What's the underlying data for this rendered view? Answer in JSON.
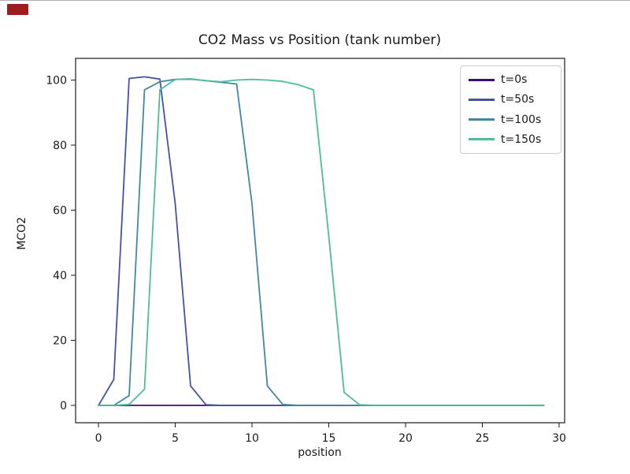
{
  "window": {
    "recording_indicator_color": "#9b1d1d",
    "background": "#ffffff",
    "top_edge_color": "#adadad"
  },
  "chart_data": {
    "type": "line",
    "title": "CO2 Mass vs Position (tank number)",
    "xlabel": "position",
    "ylabel": "MCO2",
    "xlim": [
      -1.49,
      30.36
    ],
    "ylim": [
      -5.33,
      106.67
    ],
    "x_ticks": [
      0,
      5,
      10,
      15,
      20,
      25,
      30
    ],
    "y_ticks": [
      0,
      20,
      40,
      60,
      80,
      100
    ],
    "grid": false,
    "legend_position": "upper right",
    "axis_color": "#1a1a1a",
    "x": [
      0,
      1,
      2,
      3,
      4,
      5,
      6,
      7,
      8,
      9,
      10,
      11,
      12,
      13,
      14,
      15,
      16,
      17,
      18,
      19,
      20,
      21,
      22,
      23,
      24,
      25,
      26,
      27,
      28,
      29
    ],
    "series": [
      {
        "name": "t=0s",
        "color": "#3b0f70",
        "values": [
          0,
          0,
          0,
          0,
          0,
          0,
          0,
          0,
          0,
          0,
          0,
          0,
          0,
          0,
          0,
          0,
          0,
          0,
          0,
          0,
          0,
          0,
          0,
          0,
          0,
          0,
          0,
          0,
          0,
          0
        ]
      },
      {
        "name": "t=50s",
        "color": "#4751a2",
        "values": [
          0,
          8,
          100.5,
          101,
          100.3,
          62,
          6,
          0.2,
          0,
          0,
          0,
          0,
          0,
          0,
          0,
          0,
          0,
          0,
          0,
          0,
          0,
          0,
          0,
          0,
          0,
          0,
          0,
          0,
          0,
          0
        ]
      },
      {
        "name": "t=100s",
        "color": "#4387a5",
        "values": [
          0,
          0,
          3,
          97,
          99.5,
          100.2,
          100.3,
          99.8,
          99.3,
          98.8,
          62,
          6,
          0.3,
          0,
          0,
          0,
          0,
          0,
          0,
          0,
          0,
          0,
          0,
          0,
          0,
          0,
          0,
          0,
          0,
          0
        ]
      },
      {
        "name": "t=150s",
        "color": "#4dbc9d",
        "values": [
          0,
          0,
          0.3,
          5,
          97,
          100.2,
          100.4,
          99.8,
          99.5,
          100,
          100.2,
          100,
          99.6,
          98.6,
          97,
          52,
          4,
          0.2,
          0,
          0,
          0,
          0,
          0,
          0,
          0,
          0,
          0,
          0,
          0,
          0
        ]
      }
    ]
  }
}
